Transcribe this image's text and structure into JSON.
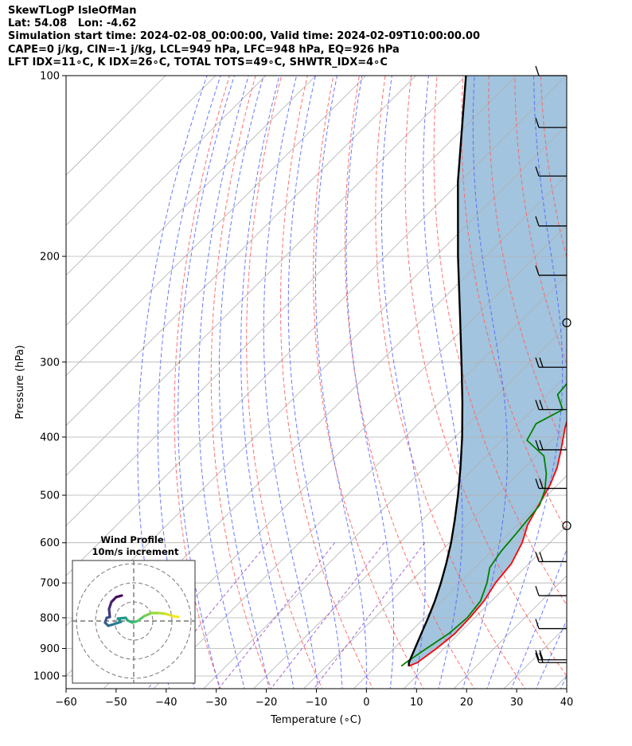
{
  "header": {
    "line1": "SkewTLogP IsleOfMan",
    "line2": "Lat: 54.08   Lon: -4.62",
    "line3": "Simulation start time: 2024-02-08_00:00:00, Valid time: 2024-02-09T10:00:00.00",
    "line4": "CAPE=0 j/kg, CIN=-1 j/kg, LCL=949 hPa, LFC=948 hPa, EQ=926 hPa",
    "line5": "LFT IDX=11∘C, K IDX=26∘C, TOTAL TOTS=49∘C, SHWTR_IDX=4∘C"
  },
  "chart_data": {
    "type": "skewt",
    "xlabel": "Temperature (∘C)",
    "ylabel": "Pressure (hPa)",
    "xlim": [
      -60,
      40
    ],
    "ylim": [
      1050,
      100
    ],
    "y_scale": "log",
    "x_ticks": [
      -60,
      -50,
      -40,
      -30,
      -20,
      -10,
      0,
      10,
      20,
      30,
      40
    ],
    "x_tick_labels": [
      "−60",
      "−50",
      "−40",
      "−30",
      "−20",
      "−10",
      "0",
      "10",
      "20",
      "30",
      "40"
    ],
    "y_ticks": [
      1000,
      900,
      800,
      700,
      600,
      500,
      400,
      300,
      200,
      100
    ],
    "y_tick_labels": [
      "1000",
      "900",
      "800",
      "700",
      "600",
      "500",
      "400",
      "300",
      "200",
      "100"
    ],
    "grid": true,
    "series": [
      {
        "role": "temperature",
        "color": "#ff0000",
        "points": [
          [
            6.5,
            963
          ],
          [
            7.5,
            950
          ],
          [
            8.5,
            900
          ],
          [
            9.2,
            850
          ],
          [
            9.0,
            800
          ],
          [
            8.5,
            750
          ],
          [
            7.2,
            700
          ],
          [
            6.5,
            650
          ],
          [
            4.5,
            600
          ],
          [
            2.0,
            560
          ],
          [
            0.3,
            520
          ],
          [
            -1.5,
            480
          ],
          [
            -3.5,
            450
          ],
          [
            -6.3,
            420
          ],
          [
            -10,
            385
          ],
          [
            -13.5,
            350
          ],
          [
            -17,
            315
          ],
          [
            -19.5,
            285
          ],
          [
            -21.5,
            265
          ],
          [
            -21.5,
            255
          ],
          [
            -20,
            240
          ],
          [
            -18,
            230
          ],
          [
            -16,
            220
          ],
          [
            -13,
            210
          ],
          [
            -10,
            195
          ],
          [
            -5.5,
            175
          ],
          [
            -1,
            155
          ],
          [
            3,
            140
          ],
          [
            5.5,
            130
          ],
          [
            8.5,
            120
          ],
          [
            10.5,
            110
          ],
          [
            12.5,
            100
          ]
        ]
      },
      {
        "role": "dewpoint",
        "color": "#008000",
        "points": [
          [
            5.0,
            963
          ],
          [
            5.2,
            950
          ],
          [
            6.5,
            900
          ],
          [
            8.0,
            850
          ],
          [
            8.5,
            800
          ],
          [
            7.8,
            750
          ],
          [
            5.5,
            700
          ],
          [
            3.0,
            660
          ],
          [
            2.0,
            620
          ],
          [
            1.5,
            580
          ],
          [
            0.5,
            520
          ],
          [
            -1.5,
            490
          ],
          [
            -4.5,
            460
          ],
          [
            -8.5,
            430
          ],
          [
            -15,
            405
          ],
          [
            -16.5,
            380
          ],
          [
            -14,
            360
          ],
          [
            -18,
            340
          ],
          [
            -18.5,
            320
          ],
          [
            -20.5,
            300
          ],
          [
            -21.5,
            280
          ],
          [
            -22.5,
            260
          ],
          [
            -23.5,
            245
          ],
          [
            -25,
            230
          ],
          [
            -27.5,
            215
          ],
          [
            -28,
            205
          ],
          [
            -26,
            198
          ],
          [
            -26,
            185
          ],
          [
            -24,
            175
          ],
          [
            -22,
            165
          ],
          [
            -20,
            155
          ],
          [
            -17,
            140
          ],
          [
            -14,
            130
          ],
          [
            -10,
            120
          ],
          [
            -5,
            110
          ],
          [
            0,
            100
          ]
        ]
      },
      {
        "role": "parcel",
        "color": "#000000",
        "points": [
          [
            6.5,
            963
          ],
          [
            5.8,
            950
          ],
          [
            4.2,
            900
          ],
          [
            2.5,
            850
          ],
          [
            0.7,
            800
          ],
          [
            -1.3,
            750
          ],
          [
            -3.7,
            700
          ],
          [
            -6.5,
            650
          ],
          [
            -9.7,
            600
          ],
          [
            -13.5,
            550
          ],
          [
            -17.8,
            500
          ],
          [
            -22.8,
            450
          ],
          [
            -28.6,
            400
          ],
          [
            -35.5,
            350
          ],
          [
            -43.7,
            300
          ],
          [
            -53.5,
            250
          ],
          [
            -65.5,
            200
          ],
          [
            -80.5,
            150
          ],
          [
            -100,
            100
          ]
        ]
      }
    ],
    "barbs": [
      {
        "pressure": 100,
        "speed_kt": 10
      },
      {
        "pressure": 122,
        "speed_kt": 10
      },
      {
        "pressure": 147,
        "speed_kt": 10
      },
      {
        "pressure": 178,
        "speed_kt": 10
      },
      {
        "pressure": 215,
        "speed_kt": 10
      },
      {
        "pressure": 258,
        "speed_kt": 0
      },
      {
        "pressure": 306,
        "speed_kt": 20
      },
      {
        "pressure": 360,
        "speed_kt": 20
      },
      {
        "pressure": 420,
        "speed_kt": 20
      },
      {
        "pressure": 487,
        "speed_kt": 20
      },
      {
        "pressure": 562,
        "speed_kt": 0
      },
      {
        "pressure": 645,
        "speed_kt": 20
      },
      {
        "pressure": 735,
        "speed_kt": 10
      },
      {
        "pressure": 834,
        "speed_kt": 10
      },
      {
        "pressure": 940,
        "speed_kt": 15
      },
      {
        "pressure": 950,
        "speed_kt": 15
      }
    ],
    "inset": {
      "type": "hodograph",
      "title": "Wind Profile",
      "subtitle": "10m/s increment",
      "rings": 3,
      "colormap": "viridis",
      "track": [
        [
          -1.5,
          3.2
        ],
        [
          -2.2,
          3.0
        ],
        [
          -2.8,
          2.4
        ],
        [
          -3.1,
          1.5
        ],
        [
          -3.0,
          0.5
        ],
        [
          -3.4,
          0.4
        ],
        [
          -3.6,
          -0.2
        ],
        [
          -3.2,
          -0.6
        ],
        [
          -2.5,
          -0.4
        ],
        [
          -1.6,
          -0.1
        ],
        [
          -2.0,
          0.3
        ],
        [
          -1.0,
          0.4
        ],
        [
          -0.8,
          0.1
        ],
        [
          -0.2,
          -0.2
        ],
        [
          0.5,
          0.0
        ],
        [
          1.3,
          0.6
        ],
        [
          2.2,
          1.0
        ],
        [
          3.2,
          1.0
        ],
        [
          4.0,
          0.9
        ],
        [
          5.0,
          0.6
        ],
        [
          5.6,
          0.5
        ]
      ]
    }
  }
}
